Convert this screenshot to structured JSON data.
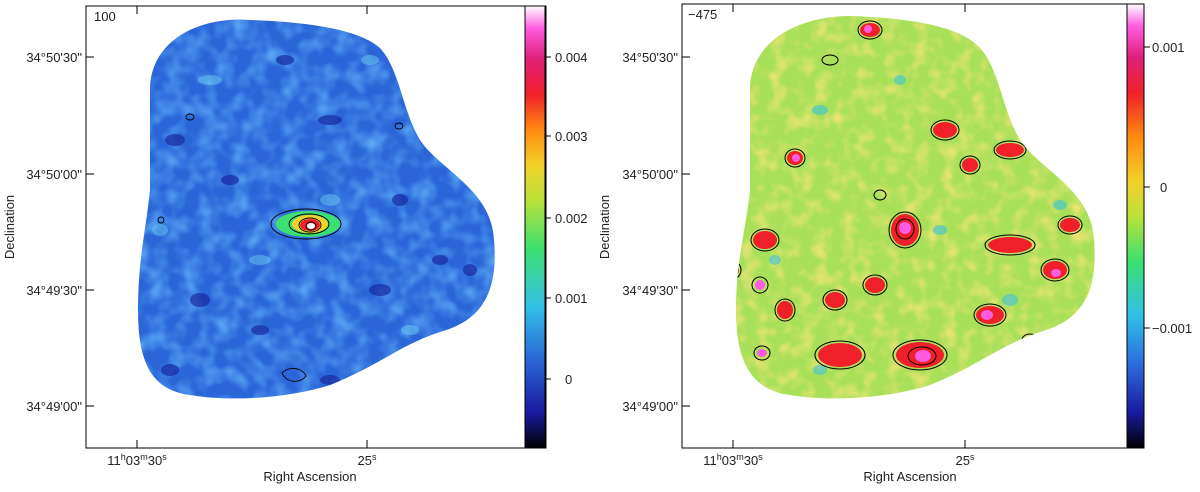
{
  "panels": [
    {
      "corner_label": "100",
      "colorbar_ticks": [
        "0.004",
        "0.003",
        "0.002",
        "0.001",
        "0"
      ],
      "y_ticks": [
        "34°50'30\"",
        "34°50'00\"",
        "34°49'30\"",
        "34°49'00\""
      ],
      "x_ticks": [
        "11h03m30s",
        "25s"
      ],
      "x_axis_label": "Right Ascension",
      "y_axis_label": "Declination",
      "background_color": "#2a66d8"
    },
    {
      "corner_label": "−475",
      "colorbar_ticks": [
        "0.001",
        "0",
        "−0.001"
      ],
      "y_ticks": [
        "34°50'30\"",
        "34°50'00\"",
        "34°49'30\"",
        "34°49'00\""
      ],
      "x_ticks": [
        "11h03m30s",
        "25s"
      ],
      "x_axis_label": "Right Ascension",
      "y_axis_label": "Declination",
      "background_color": "#a9e05a"
    }
  ],
  "colors": {
    "colormap": [
      "#000000",
      "#1a1aa0",
      "#2a66d8",
      "#32c0e8",
      "#3be070",
      "#b9e23a",
      "#f2d12a",
      "#ff8a10",
      "#f0202a",
      "#e0207a",
      "#ff5ce0",
      "#ffffff"
    ]
  }
}
